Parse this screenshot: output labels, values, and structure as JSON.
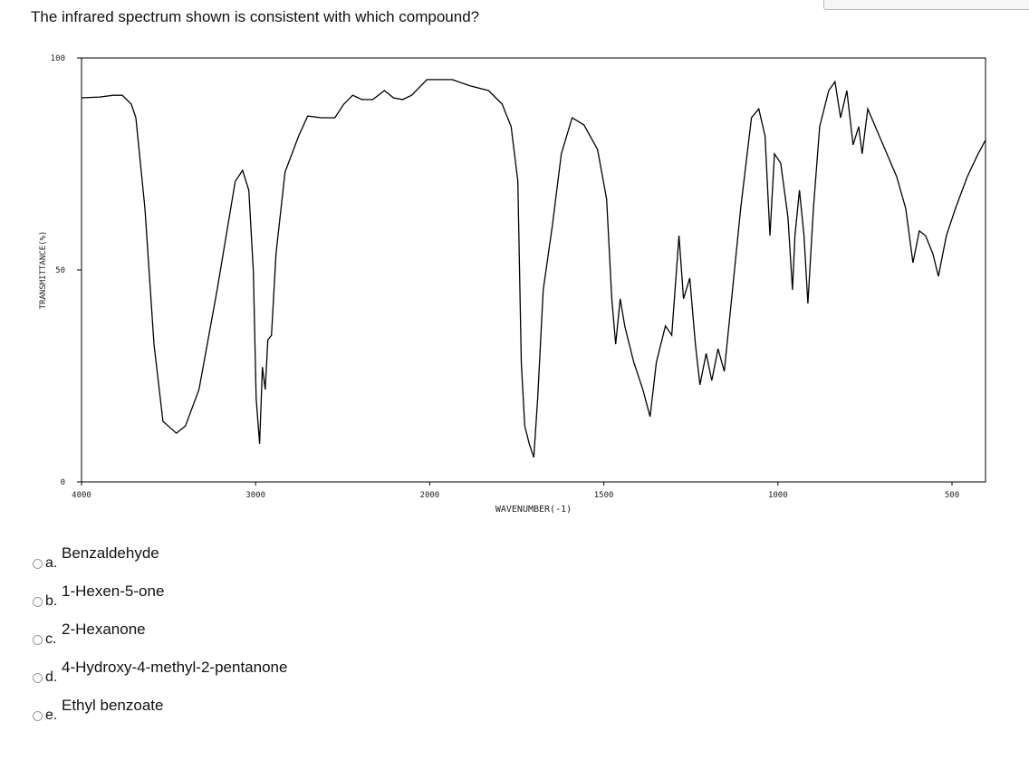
{
  "question": "The infrared spectrum shown is consistent with which compound?",
  "chart_data": {
    "type": "line",
    "xlabel": "WAVENUMBER(-1)",
    "ylabel": "TRANSMITTANCE(%)",
    "color": "#000000",
    "xlim": [
      4000,
      400
    ],
    "xticks": [
      4000,
      3000,
      2000,
      1500,
      1000,
      500
    ],
    "ylim": [
      0,
      100
    ],
    "yticks": [
      0,
      50,
      100
    ],
    "x": [
      4000,
      3896,
      3818,
      3766,
      3714,
      3688,
      3636,
      3584,
      3532,
      3455,
      3403,
      3325,
      3221,
      3117,
      3075,
      3039,
      3013,
      2997,
      2977,
      2961,
      2945,
      2930,
      2909,
      2883,
      2831,
      2753,
      2701,
      2623,
      2545,
      2494,
      2442,
      2390,
      2327,
      2260,
      2208,
      2156,
      2104,
      2016,
      1961,
      1935,
      1883,
      1831,
      1792,
      1766,
      1747,
      1737,
      1727,
      1714,
      1701,
      1690,
      1674,
      1648,
      1622,
      1591,
      1557,
      1518,
      1492,
      1477,
      1466,
      1453,
      1440,
      1414,
      1388,
      1367,
      1349,
      1323,
      1305,
      1284,
      1271,
      1253,
      1237,
      1224,
      1206,
      1190,
      1172,
      1154,
      1133,
      1107,
      1076,
      1055,
      1037,
      1023,
      1010,
      992,
      971,
      958,
      951,
      938,
      925,
      914,
      898,
      880,
      854,
      836,
      820,
      802,
      784,
      768,
      758,
      742,
      698,
      659,
      633,
      612,
      594,
      576,
      555,
      539,
      516,
      490,
      456,
      425,
      404
    ],
    "values": [
      90.6,
      90.8,
      91.2,
      91.2,
      89.1,
      85.9,
      64.5,
      32.5,
      14.3,
      11.5,
      13.2,
      21.8,
      45.3,
      70.9,
      73.5,
      68.8,
      49.6,
      19.7,
      9.0,
      27.1,
      21.8,
      33.5,
      34.6,
      53.8,
      73.1,
      81.6,
      86.3,
      85.9,
      85.9,
      89.1,
      91.2,
      90.2,
      90.2,
      92.3,
      90.6,
      90.2,
      91.2,
      94.9,
      94.9,
      94.9,
      93.4,
      92.3,
      89.1,
      83.8,
      70.9,
      28.2,
      13.2,
      9.0,
      5.8,
      19.7,
      45.3,
      60.3,
      77.4,
      85.9,
      84.2,
      78.4,
      66.7,
      43.2,
      32.5,
      43.2,
      36.8,
      28.2,
      21.8,
      15.4,
      28.2,
      36.8,
      34.6,
      58.1,
      43.2,
      48.1,
      32.5,
      22.9,
      30.3,
      23.9,
      31.4,
      26.1,
      43.2,
      64.5,
      85.9,
      88.0,
      81.6,
      58.1,
      77.4,
      75.2,
      62.4,
      45.3,
      58.1,
      68.8,
      58.1,
      42.1,
      64.5,
      83.8,
      92.3,
      94.4,
      85.9,
      92.3,
      79.5,
      83.8,
      77.4,
      88.0,
      79.5,
      72.0,
      64.5,
      51.7,
      59.2,
      58.1,
      53.8,
      48.5,
      58.1,
      64.5,
      72.0,
      77.4,
      80.6
    ]
  },
  "options": [
    {
      "letter": "a.",
      "text": "Benzaldehyde"
    },
    {
      "letter": "b.",
      "text": "1-Hexen-5-one"
    },
    {
      "letter": "c.",
      "text": "2-Hexanone"
    },
    {
      "letter": "d.",
      "text": "4-Hydroxy-4-methyl-2-pentanone"
    },
    {
      "letter": "e.",
      "text": "Ethyl benzoate"
    }
  ]
}
